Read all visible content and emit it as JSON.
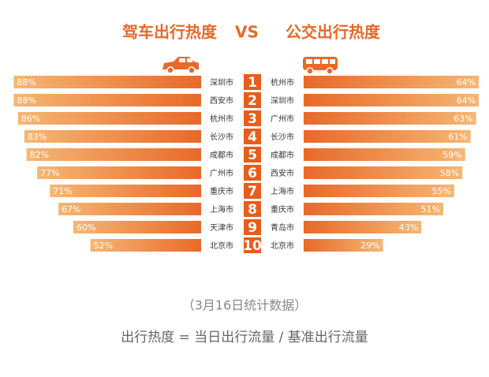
{
  "title": {
    "left": "驾车出行热度",
    "vs": "VS",
    "right": "公交出行热度"
  },
  "ranks": [
    1,
    2,
    3,
    4,
    5,
    6,
    7,
    8,
    9,
    10
  ],
  "rank_color": "#e85d1a",
  "chart_data": [
    {
      "type": "bar",
      "orientation": "horizontal",
      "direction": "left",
      "categories": [
        "深圳市",
        "西安市",
        "杭州市",
        "长沙市",
        "成都市",
        "广州市",
        "重庆市",
        "上海市",
        "天津市",
        "北京市"
      ],
      "values": [
        88,
        88,
        86,
        83,
        82,
        77,
        71,
        67,
        60,
        52
      ],
      "value_labels": [
        "88%",
        "88%",
        "86%",
        "83%",
        "82%",
        "77%",
        "71%",
        "67%",
        "60%",
        "52%"
      ],
      "xlim": [
        0,
        100
      ],
      "gradient": [
        "#f6b773",
        "#e8692a"
      ]
    },
    {
      "type": "bar",
      "orientation": "horizontal",
      "direction": "right",
      "categories": [
        "杭州市",
        "深圳市",
        "广州市",
        "长沙市",
        "成都市",
        "西安市",
        "上海市",
        "重庆市",
        "青岛市",
        "北京市"
      ],
      "values": [
        64,
        64,
        63,
        61,
        59,
        58,
        55,
        51,
        43,
        29
      ],
      "value_labels": [
        "64%",
        "64%",
        "63%",
        "61%",
        "59%",
        "58%",
        "55%",
        "51%",
        "43%",
        "29%"
      ],
      "xlim": [
        0,
        100
      ],
      "gradient": [
        "#f6b773",
        "#e8692a"
      ]
    }
  ],
  "note": "（3月16日统计数据）",
  "formula": "出行热度 = 当日出行流量 / 基准出行流量"
}
